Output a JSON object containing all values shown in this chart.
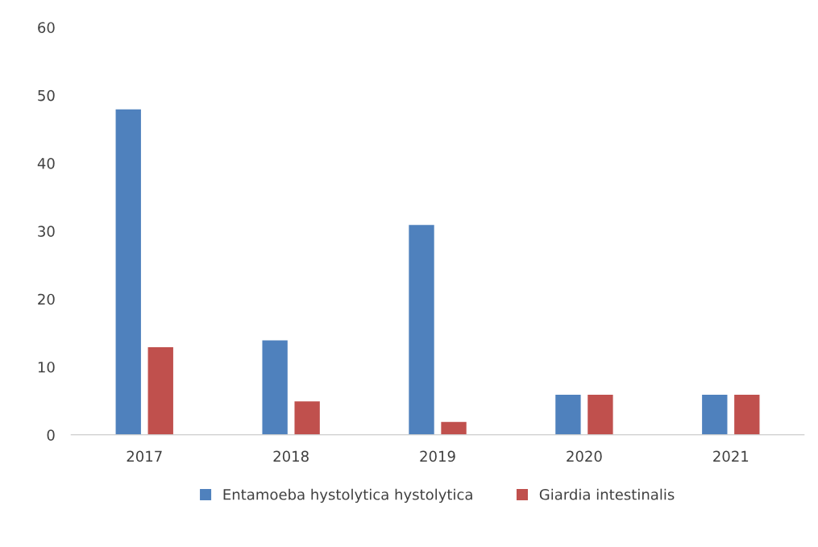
{
  "chart_data": {
    "type": "bar",
    "categories": [
      "2017",
      "2018",
      "2019",
      "2020",
      "2021"
    ],
    "series": [
      {
        "name": "Entamoeba hystolytica hystolytica",
        "color": "#4f81bd",
        "values": [
          48,
          14,
          31,
          6,
          6
        ]
      },
      {
        "name": "Giardia intestinalis",
        "color": "#c0504d",
        "values": [
          13,
          5,
          2,
          6,
          6
        ]
      }
    ],
    "ylim": [
      0,
      60
    ],
    "yticks": [
      0,
      10,
      20,
      30,
      40,
      50,
      60
    ],
    "grid": false,
    "legend": "bottom"
  }
}
